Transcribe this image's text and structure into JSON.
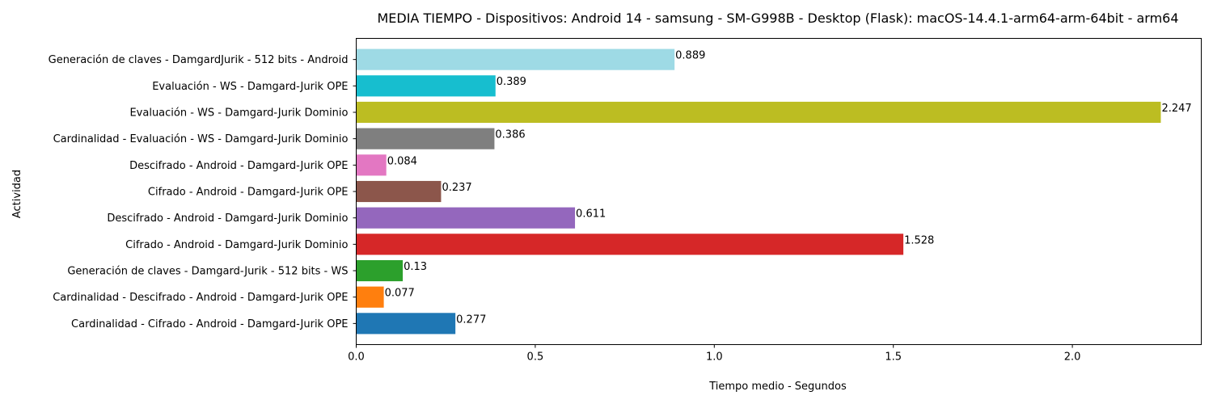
{
  "chart_data": {
    "type": "bar",
    "orientation": "horizontal",
    "title": "MEDIA TIEMPO - Dispositivos: Android 14 - samsung - SM-G998B - Desktop (Flask): macOS-14.4.1-arm64-arm-64bit - arm64",
    "xlabel": "Tiempo medio - Segundos",
    "ylabel": "Actividad",
    "xlim": [
      0,
      2.36
    ],
    "xticks": [
      0.0,
      0.5,
      1.0,
      1.5,
      2.0
    ],
    "xtick_labels": [
      "0.0",
      "0.5",
      "1.0",
      "1.5",
      "2.0"
    ],
    "grid": false,
    "legend": "none",
    "bars": [
      {
        "label": "Cardinalidad - Cifrado - Android - Damgard-Jurik OPE",
        "value": 0.277,
        "value_label": "0.277",
        "color": "#1f77b4"
      },
      {
        "label": "Cardinalidad - Descifrado - Android - Damgard-Jurik OPE",
        "value": 0.077,
        "value_label": "0.077",
        "color": "#ff7f0e"
      },
      {
        "label": "Generación de claves - Damgard-Jurik - 512 bits - WS",
        "value": 0.13,
        "value_label": "0.13",
        "color": "#2ca02c"
      },
      {
        "label": "Cifrado - Android - Damgard-Jurik Dominio",
        "value": 1.528,
        "value_label": "1.528",
        "color": "#d62728"
      },
      {
        "label": "Descifrado - Android - Damgard-Jurik Dominio",
        "value": 0.611,
        "value_label": "0.611",
        "color": "#9467bd"
      },
      {
        "label": "Cifrado - Android - Damgard-Jurik OPE",
        "value": 0.237,
        "value_label": "0.237",
        "color": "#8c564b"
      },
      {
        "label": "Descifrado - Android - Damgard-Jurik OPE",
        "value": 0.084,
        "value_label": "0.084",
        "color": "#e377c2"
      },
      {
        "label": "Cardinalidad - Evaluación - WS - Damgard-Jurik Dominio",
        "value": 0.386,
        "value_label": "0.386",
        "color": "#7f7f7f"
      },
      {
        "label": "Evaluación - WS - Damgard-Jurik Dominio",
        "value": 2.247,
        "value_label": "2.247",
        "color": "#bcbd22"
      },
      {
        "label": "Evaluación - WS - Damgard-Jurik OPE",
        "value": 0.389,
        "value_label": "0.389",
        "color": "#17becf"
      },
      {
        "label": "Generación de claves - DamgardJurik - 512 bits - Android",
        "value": 0.889,
        "value_label": "0.889",
        "color": "#9edae5"
      }
    ]
  }
}
